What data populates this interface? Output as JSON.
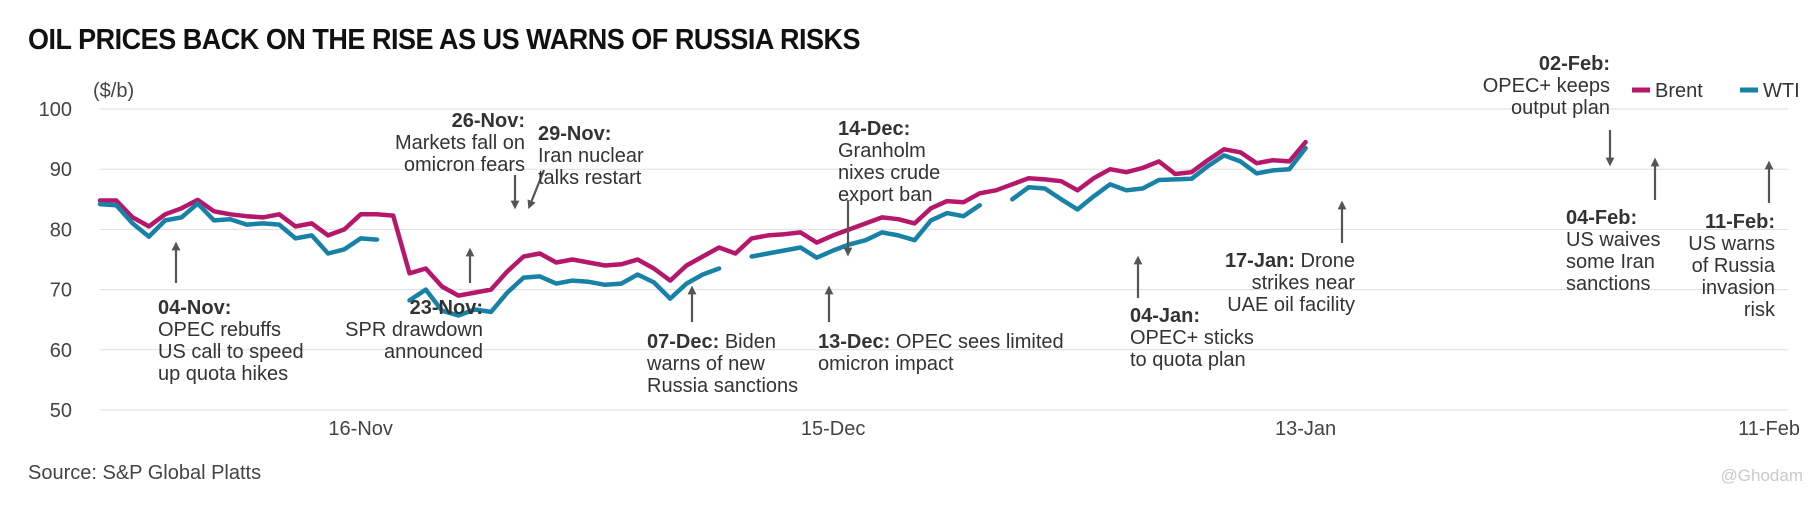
{
  "title": "OIL PRICES BACK ON THE RISE AS US WARNS OF RUSSIA RISKS",
  "source": "Source: S&P Global Platts",
  "watermark": "@Ghodam",
  "colors": {
    "brent": "#b5176b",
    "wti": "#1782a6",
    "grid": "#dddddd",
    "arrow": "#555555"
  },
  "chart_data": {
    "type": "line",
    "ylabel": "($/b)",
    "ylim": [
      50,
      100
    ],
    "yticks": [
      50,
      60,
      70,
      80,
      90,
      100
    ],
    "xticks": [
      {
        "label": "16-Nov",
        "x": 14
      },
      {
        "label": "15-Dec",
        "x": 43
      },
      {
        "label": "13-Jan",
        "x": 72
      },
      {
        "label": "11-Feb",
        "x": 101
      }
    ],
    "xlim": [
      -2,
      101
    ],
    "grid": true,
    "legend": "top-right",
    "series": [
      {
        "name": "Brent",
        "color": "#b5176b",
        "points": [
          [
            -2,
            84.8
          ],
          [
            -1,
            84.8
          ],
          [
            0,
            82
          ],
          [
            1,
            80.5
          ],
          [
            2,
            82.5
          ],
          [
            3,
            83.5
          ],
          [
            4,
            84.9
          ],
          [
            5,
            83
          ],
          [
            6,
            82.5
          ],
          [
            7,
            82.2
          ],
          [
            8,
            82
          ],
          [
            9,
            82.5
          ],
          [
            10,
            80.5
          ],
          [
            11,
            81
          ],
          [
            12,
            79
          ],
          [
            13,
            80
          ],
          [
            14,
            82.5
          ],
          [
            15,
            82.5
          ],
          [
            16,
            82.3
          ],
          [
            17,
            72.7
          ],
          [
            18,
            73.5
          ],
          [
            19,
            70.5
          ],
          [
            20,
            69
          ],
          [
            21,
            69.5
          ],
          [
            22,
            70
          ],
          [
            23,
            73
          ],
          [
            24,
            75.5
          ],
          [
            25,
            76
          ],
          [
            26,
            74.5
          ],
          [
            27,
            75
          ],
          [
            28,
            74.5
          ],
          [
            29,
            74
          ],
          [
            30,
            74.2
          ],
          [
            31,
            75
          ],
          [
            32,
            73.5
          ],
          [
            33,
            71.5
          ],
          [
            34,
            74
          ],
          [
            35,
            75.5
          ],
          [
            36,
            77
          ],
          [
            37,
            76
          ],
          [
            38,
            78.5
          ],
          [
            39,
            79
          ],
          [
            40,
            79.2
          ],
          [
            41,
            79.5
          ],
          [
            42,
            77.8
          ],
          [
            43,
            79
          ],
          [
            44,
            80
          ],
          [
            45,
            81
          ],
          [
            46,
            82
          ],
          [
            47,
            81.7
          ],
          [
            48,
            81
          ],
          [
            49,
            83.5
          ],
          [
            50,
            84.7
          ],
          [
            51,
            84.5
          ],
          [
            52,
            86
          ],
          [
            53,
            86.5
          ],
          [
            54,
            87.5
          ],
          [
            55,
            88.5
          ],
          [
            56,
            88.3
          ],
          [
            57,
            88
          ],
          [
            58,
            86.5
          ],
          [
            59,
            88.5
          ],
          [
            60,
            90
          ],
          [
            61,
            89.5
          ],
          [
            62,
            90.2
          ],
          [
            63,
            91.3
          ],
          [
            64,
            89.2
          ],
          [
            65,
            89.5
          ],
          [
            66,
            91.5
          ],
          [
            67,
            93.3
          ],
          [
            68,
            92.8
          ],
          [
            69,
            91
          ],
          [
            70,
            91.5
          ],
          [
            71,
            91.3
          ],
          [
            72,
            94.5
          ]
        ]
      },
      {
        "name": "WTI",
        "color": "#1782a6",
        "points": [
          [
            -2,
            84.2
          ],
          [
            -1,
            84
          ],
          [
            0,
            81
          ],
          [
            1,
            78.8
          ],
          [
            2,
            81.5
          ],
          [
            3,
            82
          ],
          [
            4,
            84.3
          ],
          [
            5,
            81.5
          ],
          [
            6,
            81.7
          ],
          [
            7,
            80.8
          ],
          [
            8,
            81
          ],
          [
            9,
            80.8
          ],
          [
            10,
            78.5
          ],
          [
            11,
            79
          ],
          [
            12,
            76
          ],
          [
            13,
            76.7
          ],
          [
            14,
            78.5
          ],
          [
            15,
            78.3
          ],
          null,
          [
            17,
            68.2
          ],
          [
            18,
            70
          ],
          [
            19,
            66.5
          ],
          [
            20,
            65.7
          ],
          [
            21,
            66.7
          ],
          [
            22,
            66.3
          ],
          [
            23,
            69.5
          ],
          [
            24,
            72
          ],
          [
            25,
            72.2
          ],
          [
            26,
            71
          ],
          [
            27,
            71.5
          ],
          [
            28,
            71.3
          ],
          [
            29,
            70.8
          ],
          [
            30,
            71
          ],
          [
            31,
            72.5
          ],
          [
            32,
            71.2
          ],
          [
            33,
            68.5
          ],
          [
            34,
            71
          ],
          [
            35,
            72.5
          ],
          [
            36,
            73.5
          ],
          null,
          [
            38,
            75.5
          ],
          [
            39,
            76
          ],
          [
            40,
            76.5
          ],
          [
            41,
            77
          ],
          [
            42,
            75.3
          ],
          [
            43,
            76.5
          ],
          [
            44,
            77.5
          ],
          [
            45,
            78.2
          ],
          [
            46,
            79.5
          ],
          [
            47,
            79
          ],
          [
            48,
            78.2
          ],
          [
            49,
            81.5
          ],
          [
            50,
            82.7
          ],
          [
            51,
            82.2
          ],
          [
            52,
            84
          ],
          null,
          [
            54,
            85
          ],
          [
            55,
            87
          ],
          [
            56,
            86.8
          ],
          [
            57,
            85
          ],
          [
            58,
            83.3
          ],
          [
            59,
            85.5
          ],
          [
            60,
            87.5
          ],
          [
            61,
            86.5
          ],
          [
            62,
            86.8
          ],
          [
            63,
            88.2
          ],
          [
            64,
            88.3
          ],
          [
            65,
            88.4
          ],
          [
            66,
            90.5
          ],
          [
            67,
            92.3
          ],
          [
            68,
            91.3
          ],
          [
            69,
            89.3
          ],
          [
            70,
            89.8
          ],
          [
            71,
            90
          ],
          [
            72,
            93.5
          ]
        ]
      }
    ],
    "annotations": [
      {
        "date": "04-Nov:",
        "text": [
          "OPEC rebuffs",
          "US call to speed",
          "up quota hikes"
        ]
      },
      {
        "date": "23-Nov:",
        "text": [
          "SPR drawdown",
          "announced"
        ]
      },
      {
        "date": "26-Nov:",
        "text": [
          "Markets fall on",
          "omicron fears"
        ]
      },
      {
        "date": "29-Nov:",
        "text": [
          "Iran nuclear",
          "talks restart"
        ]
      },
      {
        "date": "07-Dec:",
        "text": [
          "Biden",
          "warns of new",
          "Russia sanctions"
        ]
      },
      {
        "date": "13-Dec:",
        "text": [
          "OPEC sees limited",
          "omicron impact"
        ]
      },
      {
        "date": "14-Dec:",
        "text": [
          "Granholm",
          "nixes crude",
          "export ban"
        ]
      },
      {
        "date": "04-Jan:",
        "text": [
          "OPEC+ sticks",
          "to quota plan"
        ]
      },
      {
        "date": "17-Jan:",
        "text": [
          "Drone",
          "strikes near",
          "UAE oil facility"
        ]
      },
      {
        "date": "02-Feb:",
        "text": [
          "OPEC+ keeps",
          "output plan"
        ]
      },
      {
        "date": "04-Feb:",
        "text": [
          "US waives",
          "some Iran",
          "sanctions"
        ]
      },
      {
        "date": "11-Feb:",
        "text": [
          "US warns",
          "of Russia",
          "invasion",
          "risk"
        ]
      }
    ]
  }
}
